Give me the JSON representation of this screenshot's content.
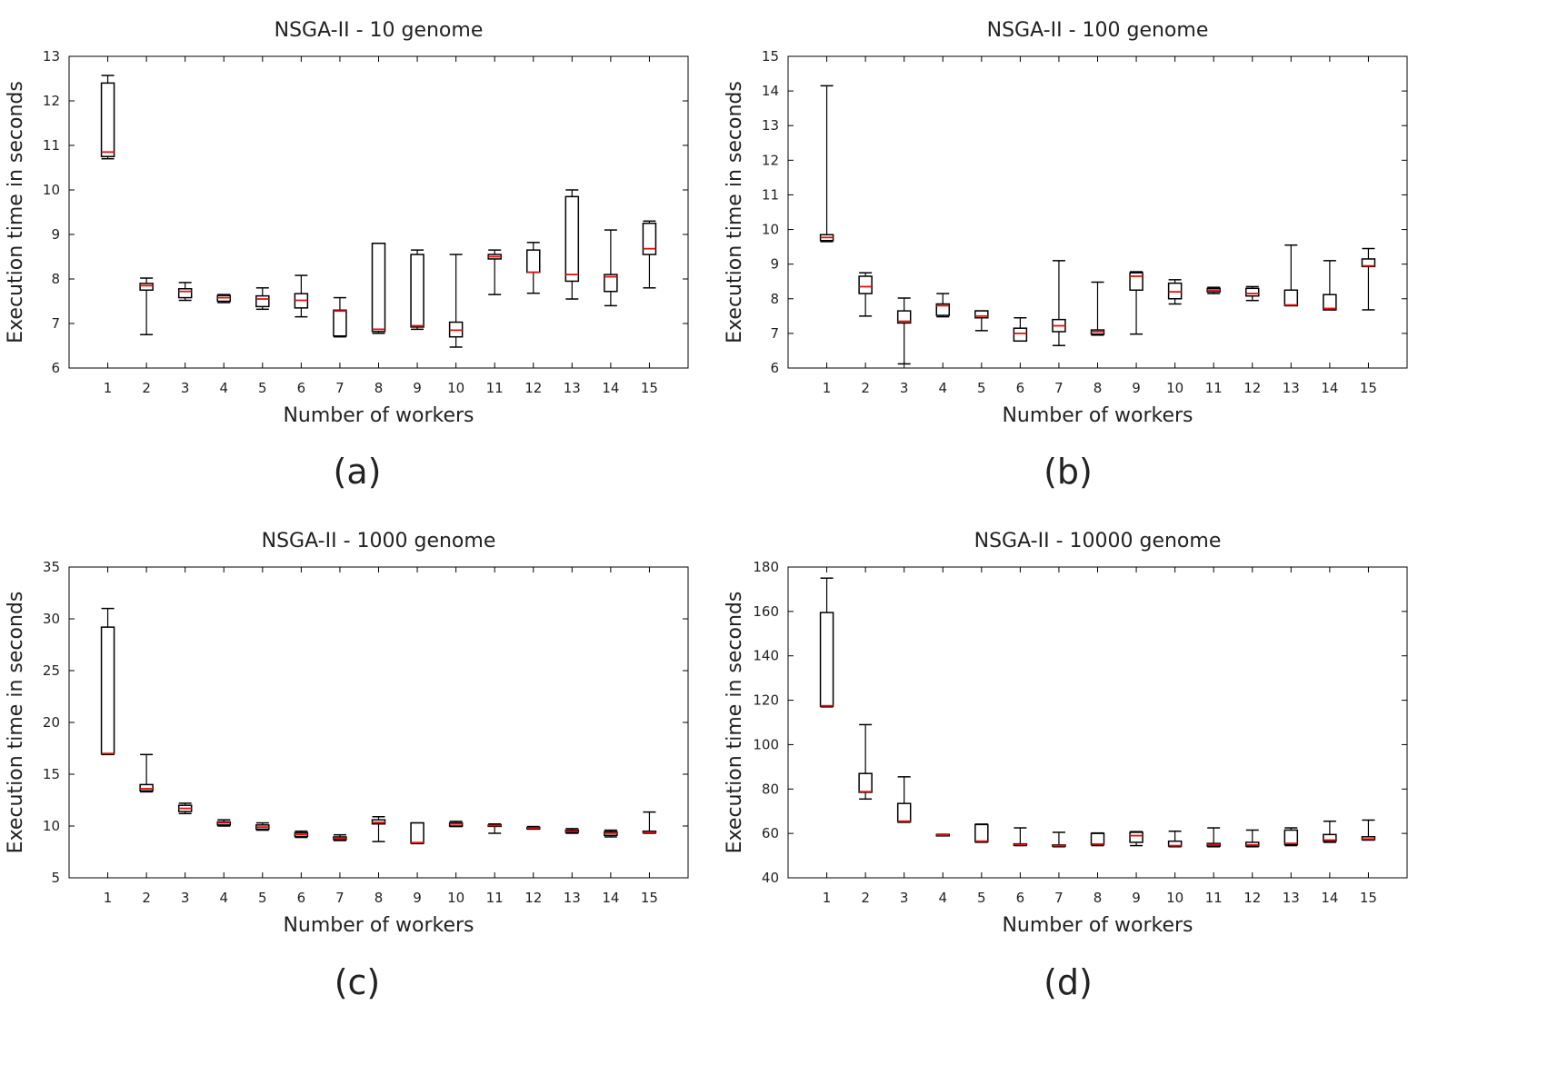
{
  "colors": {
    "box": "#000000",
    "median": "#e01010",
    "axis": "#000000",
    "background": "#ffffff"
  },
  "chart_data": [
    {
      "type": "box",
      "panel_label": "(a)",
      "title": "NSGA-II - 10 genome",
      "xlabel": "Number of workers",
      "ylabel": "Execution time in seconds",
      "ylim": [
        6,
        13
      ],
      "yticks": [
        6,
        7,
        8,
        9,
        10,
        11,
        12,
        13
      ],
      "categories": [
        "1",
        "2",
        "3",
        "4",
        "5",
        "6",
        "7",
        "8",
        "9",
        "10",
        "11",
        "12",
        "13",
        "14",
        "15"
      ],
      "boxes": [
        {
          "min": 10.7,
          "q1": 10.75,
          "median": 10.85,
          "q3": 12.4,
          "max": 12.57
        },
        {
          "min": 6.75,
          "q1": 7.75,
          "median": 7.85,
          "q3": 7.9,
          "max": 8.02
        },
        {
          "min": 7.52,
          "q1": 7.58,
          "median": 7.72,
          "q3": 7.78,
          "max": 7.92
        },
        {
          "min": 7.47,
          "q1": 7.5,
          "median": 7.58,
          "q3": 7.63,
          "max": 7.65
        },
        {
          "min": 7.32,
          "q1": 7.38,
          "median": 7.55,
          "q3": 7.62,
          "max": 7.8
        },
        {
          "min": 7.15,
          "q1": 7.35,
          "median": 7.52,
          "q3": 7.67,
          "max": 8.08
        },
        {
          "min": 6.7,
          "q1": 6.72,
          "median": 7.28,
          "q3": 7.3,
          "max": 7.58
        },
        {
          "min": 6.78,
          "q1": 6.82,
          "median": 6.87,
          "q3": 8.8,
          "max": 8.8
        },
        {
          "min": 6.87,
          "q1": 6.92,
          "median": 6.95,
          "q3": 8.55,
          "max": 8.65
        },
        {
          "min": 6.47,
          "q1": 6.7,
          "median": 6.85,
          "q3": 7.03,
          "max": 8.55
        },
        {
          "min": 7.65,
          "q1": 8.45,
          "median": 8.5,
          "q3": 8.55,
          "max": 8.65
        },
        {
          "min": 7.68,
          "q1": 8.15,
          "median": 8.15,
          "q3": 8.65,
          "max": 8.82
        },
        {
          "min": 7.55,
          "q1": 7.95,
          "median": 8.1,
          "q3": 9.85,
          "max": 10.0
        },
        {
          "min": 7.4,
          "q1": 7.72,
          "median": 8.05,
          "q3": 8.1,
          "max": 9.1
        },
        {
          "min": 7.8,
          "q1": 8.55,
          "median": 8.68,
          "q3": 9.25,
          "max": 9.3
        }
      ]
    },
    {
      "type": "box",
      "panel_label": "(b)",
      "title": "NSGA-II - 100 genome",
      "xlabel": "Number of workers",
      "ylabel": "Execution time in seconds",
      "ylim": [
        6,
        15
      ],
      "yticks": [
        6,
        7,
        8,
        9,
        10,
        11,
        12,
        13,
        14,
        15
      ],
      "categories": [
        "1",
        "2",
        "3",
        "4",
        "5",
        "6",
        "7",
        "8",
        "9",
        "10",
        "11",
        "12",
        "13",
        "14",
        "15"
      ],
      "boxes": [
        {
          "min": 9.65,
          "q1": 9.68,
          "median": 9.77,
          "q3": 9.85,
          "max": 14.15
        },
        {
          "min": 7.5,
          "q1": 8.15,
          "median": 8.35,
          "q3": 8.65,
          "max": 8.75
        },
        {
          "min": 6.12,
          "q1": 7.3,
          "median": 7.35,
          "q3": 7.65,
          "max": 8.02
        },
        {
          "min": 7.48,
          "q1": 7.52,
          "median": 7.8,
          "q3": 7.85,
          "max": 8.15
        },
        {
          "min": 7.08,
          "q1": 7.45,
          "median": 7.5,
          "q3": 7.65,
          "max": 7.65
        },
        {
          "min": 6.78,
          "q1": 6.78,
          "median": 7.0,
          "q3": 7.15,
          "max": 7.45
        },
        {
          "min": 6.65,
          "q1": 7.05,
          "median": 7.22,
          "q3": 7.4,
          "max": 9.1
        },
        {
          "min": 6.95,
          "q1": 6.98,
          "median": 7.05,
          "q3": 7.1,
          "max": 8.48
        },
        {
          "min": 6.98,
          "q1": 8.25,
          "median": 8.65,
          "q3": 8.75,
          "max": 8.78
        },
        {
          "min": 7.85,
          "q1": 8.0,
          "median": 8.2,
          "q3": 8.45,
          "max": 8.55
        },
        {
          "min": 8.15,
          "q1": 8.2,
          "median": 8.25,
          "q3": 8.3,
          "max": 8.33
        },
        {
          "min": 7.95,
          "q1": 8.08,
          "median": 8.15,
          "q3": 8.3,
          "max": 8.35
        },
        {
          "min": 7.8,
          "q1": 7.8,
          "median": 7.82,
          "q3": 8.25,
          "max": 9.55
        },
        {
          "min": 7.68,
          "q1": 7.68,
          "median": 7.72,
          "q3": 8.12,
          "max": 9.1
        },
        {
          "min": 7.68,
          "q1": 8.93,
          "median": 8.95,
          "q3": 9.15,
          "max": 9.45
        }
      ]
    },
    {
      "type": "box",
      "panel_label": "(c)",
      "title": "NSGA-II - 1000 genome",
      "xlabel": "Number of workers",
      "ylabel": "Execution time in seconds",
      "ylim": [
        5,
        35
      ],
      "yticks": [
        5,
        10,
        15,
        20,
        25,
        30,
        35
      ],
      "categories": [
        "1",
        "2",
        "3",
        "4",
        "5",
        "6",
        "7",
        "8",
        "9",
        "10",
        "11",
        "12",
        "13",
        "14",
        "15"
      ],
      "boxes": [
        {
          "min": 16.9,
          "q1": 16.95,
          "median": 17.0,
          "q3": 29.2,
          "max": 31.0
        },
        {
          "min": 13.3,
          "q1": 13.4,
          "median": 13.6,
          "q3": 14.0,
          "max": 16.9
        },
        {
          "min": 11.2,
          "q1": 11.4,
          "median": 11.7,
          "q3": 12.0,
          "max": 12.2
        },
        {
          "min": 10.0,
          "q1": 10.1,
          "median": 10.3,
          "q3": 10.4,
          "max": 10.6
        },
        {
          "min": 9.6,
          "q1": 9.7,
          "median": 9.9,
          "q3": 10.1,
          "max": 10.3
        },
        {
          "min": 8.9,
          "q1": 9.0,
          "median": 9.2,
          "q3": 9.35,
          "max": 9.5
        },
        {
          "min": 8.6,
          "q1": 8.7,
          "median": 8.8,
          "q3": 8.95,
          "max": 9.15
        },
        {
          "min": 8.5,
          "q1": 10.2,
          "median": 10.35,
          "q3": 10.6,
          "max": 10.9
        },
        {
          "min": 8.3,
          "q1": 8.35,
          "median": 8.4,
          "q3": 10.3,
          "max": 10.3
        },
        {
          "min": 9.95,
          "q1": 10.0,
          "median": 10.2,
          "q3": 10.3,
          "max": 10.45
        },
        {
          "min": 9.3,
          "q1": 10.0,
          "median": 10.05,
          "q3": 10.1,
          "max": 10.2
        },
        {
          "min": 9.7,
          "q1": 9.75,
          "median": 9.8,
          "q3": 9.85,
          "max": 9.95
        },
        {
          "min": 9.3,
          "q1": 9.4,
          "median": 9.5,
          "q3": 9.6,
          "max": 9.75
        },
        {
          "min": 8.95,
          "q1": 9.1,
          "median": 9.3,
          "q3": 9.45,
          "max": 9.6
        },
        {
          "min": 9.3,
          "q1": 9.35,
          "median": 9.4,
          "q3": 9.5,
          "max": 11.35
        }
      ]
    },
    {
      "type": "box",
      "panel_label": "(d)",
      "title": "NSGA-II - 10000 genome",
      "xlabel": "Number of workers",
      "ylabel": "Execution time in seconds",
      "ylim": [
        40,
        180
      ],
      "yticks": [
        40,
        60,
        80,
        100,
        120,
        140,
        160,
        180
      ],
      "categories": [
        "1",
        "2",
        "3",
        "4",
        "5",
        "6",
        "7",
        "8",
        "9",
        "10",
        "11",
        "12",
        "13",
        "14",
        "15"
      ],
      "boxes": [
        {
          "min": 117,
          "q1": 117.3,
          "median": 117.5,
          "q3": 159.5,
          "max": 175
        },
        {
          "min": 75.5,
          "q1": 78.5,
          "median": 78.8,
          "q3": 87,
          "max": 109
        },
        {
          "min": 65,
          "q1": 65.2,
          "median": 65.5,
          "q3": 73.5,
          "max": 85.5
        },
        {
          "min": 59,
          "q1": 59.1,
          "median": 59.3,
          "q3": 59.5,
          "max": 59.6
        },
        {
          "min": 56,
          "q1": 56.2,
          "median": 56.5,
          "q3": 64,
          "max": 64.2
        },
        {
          "min": 54.5,
          "q1": 54.8,
          "median": 55,
          "q3": 55.3,
          "max": 62.5
        },
        {
          "min": 54,
          "q1": 54.2,
          "median": 54.5,
          "q3": 54.8,
          "max": 60.5
        },
        {
          "min": 54.5,
          "q1": 55,
          "median": 55.2,
          "q3": 60,
          "max": 60.2
        },
        {
          "min": 54.5,
          "q1": 56,
          "median": 59,
          "q3": 60.5,
          "max": 60.8
        },
        {
          "min": 54,
          "q1": 54.3,
          "median": 54.5,
          "q3": 56.5,
          "max": 61
        },
        {
          "min": 54,
          "q1": 54.3,
          "median": 55,
          "q3": 55.5,
          "max": 62.5
        },
        {
          "min": 54,
          "q1": 54.3,
          "median": 54.8,
          "q3": 56,
          "max": 61.5
        },
        {
          "min": 54.5,
          "q1": 55,
          "median": 55.5,
          "q3": 61.5,
          "max": 62.5
        },
        {
          "min": 56,
          "q1": 56.5,
          "median": 57,
          "q3": 59.5,
          "max": 65.5
        },
        {
          "min": 57,
          "q1": 57.2,
          "median": 57.5,
          "q3": 58.5,
          "max": 66
        }
      ]
    }
  ]
}
